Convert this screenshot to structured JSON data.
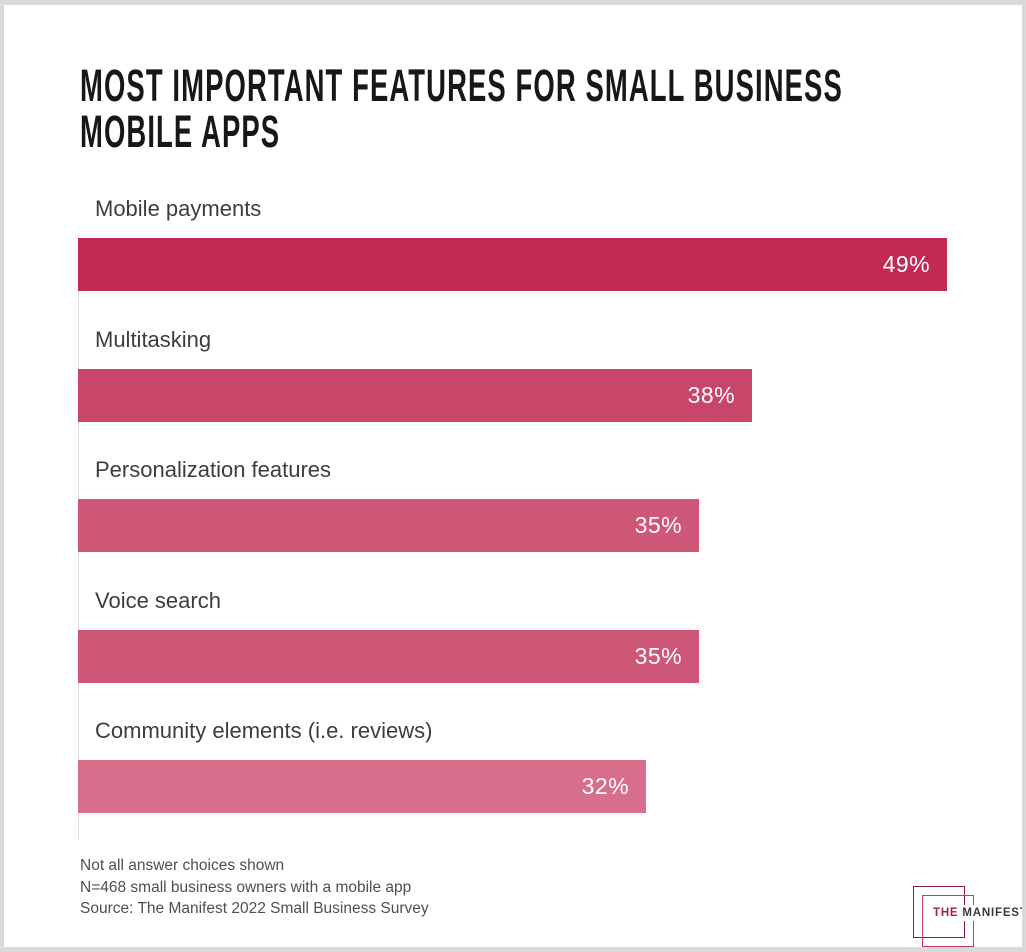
{
  "title": {
    "line1": "MOST IMPORTANT FEATURES FOR SMALL BUSINESS",
    "line2": "MOBILE APPS"
  },
  "chart_data": {
    "type": "bar",
    "orientation": "horizontal",
    "title": "MOST IMPORTANT FEATURES FOR SMALL BUSINESS MOBILE APPS",
    "categories": [
      "Mobile payments",
      "Multitasking",
      "Personalization features",
      "Voice search",
      "Community elements (i.e. reviews)"
    ],
    "values": [
      49,
      38,
      35,
      35,
      32
    ],
    "value_labels": [
      "49%",
      "38%",
      "35%",
      "35%",
      "32%"
    ],
    "unit": "%",
    "xlim": [
      0,
      49
    ],
    "grid": false,
    "legend": false,
    "value_label_position": "inside-right",
    "bar_colors": [
      "#c22a53",
      "#c7466a",
      "#ce5778",
      "#ce5778",
      "#d76e8c"
    ]
  },
  "footer": {
    "lines": [
      "Not all answer choices shown",
      "N=468 small business owners with a mobile app",
      "Source: The Manifest 2022 Small Business Survey"
    ]
  },
  "logo": {
    "the": "THE",
    "manifest": "MANIFEST"
  },
  "colors": {
    "border": "#d9d9d9",
    "title_text": "#17171a",
    "category_label": "#3d3d3d",
    "value_label": "#ffffff",
    "footer_text": "#4f4f4f",
    "axis_line": "#dedede",
    "logo_square_outer": "#8e1a3d",
    "logo_square_inner": "#c23a60",
    "logo_the": "#a42147",
    "logo_manifest": "#3a3a42"
  }
}
